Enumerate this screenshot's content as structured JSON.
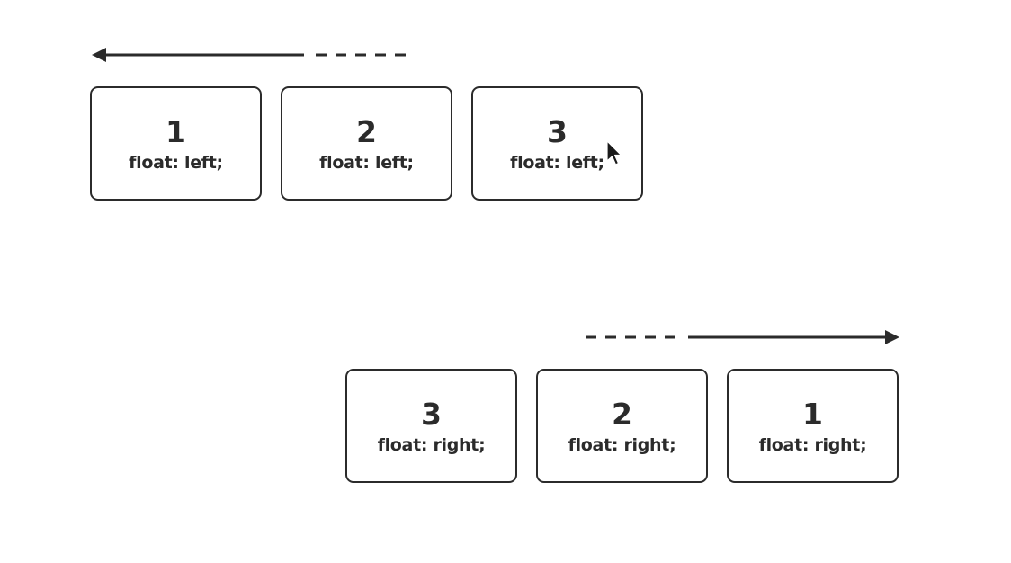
{
  "top_row": {
    "boxes": [
      {
        "number": "1",
        "code": "float: left;"
      },
      {
        "number": "2",
        "code": "float: left;"
      },
      {
        "number": "3",
        "code": "float: left;"
      }
    ],
    "arrow_direction": "left"
  },
  "bottom_row": {
    "boxes": [
      {
        "number": "3",
        "code": "float: right;"
      },
      {
        "number": "2",
        "code": "float: right;"
      },
      {
        "number": "1",
        "code": "float: right;"
      }
    ],
    "arrow_direction": "right"
  },
  "colors": {
    "stroke": "#2b2b2b",
    "background": "#ffffff"
  },
  "icons": {
    "cursor": "mouse-pointer-icon"
  }
}
